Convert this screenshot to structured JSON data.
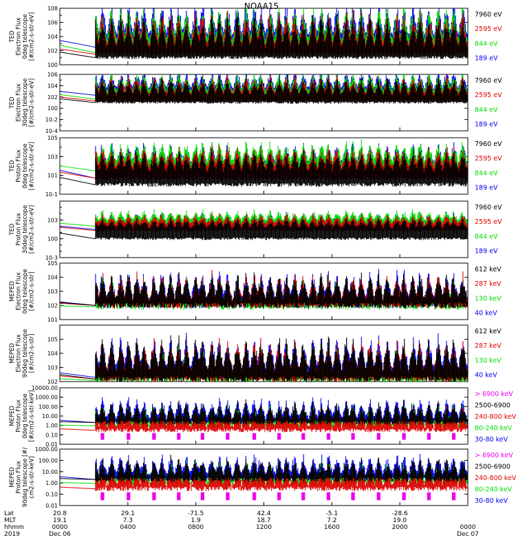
{
  "title": "NOAA15",
  "colors": {
    "black": "#000000",
    "red": "#dd0000",
    "green": "#00dd00",
    "blue": "#0000ee",
    "magenta": "#ee00ee"
  },
  "chart_data": {
    "type": "line",
    "title": "NOAA15",
    "panels": [
      {
        "ylabel": [
          "TED",
          "Electron Flux",
          "0deg telescope",
          "[#/cm2-s-str-eV]"
        ],
        "yscale": "log",
        "yticks": [
          "10^0",
          "10^2",
          "10^4",
          "10^6",
          "10^8"
        ],
        "ylim": [
          1,
          100000000
        ],
        "legend": [
          {
            "label": "7960 eV",
            "color": "black"
          },
          {
            "label": "2595 eV",
            "color": "red"
          },
          {
            "label": "844 eV",
            "color": "green"
          },
          {
            "label": "189 eV",
            "color": "blue"
          }
        ],
        "bands": {
          "black": [
            10,
            300
          ],
          "red": [
            30,
            800
          ],
          "green": [
            50,
            5000
          ],
          "blue": [
            300,
            20000
          ]
        },
        "peak_decades": 4.5
      },
      {
        "ylabel": [
          "TED",
          "Electron Flux",
          "30deg telescope",
          "[#/cm2-s-str-eV]"
        ],
        "yscale": "log",
        "yticks": [
          "10^-4",
          "10^-2",
          "10^0",
          "10^2",
          "10^4",
          "10^6"
        ],
        "ylim": [
          0.0001,
          1000000
        ],
        "legend": [
          {
            "label": "7960 eV",
            "color": "black"
          },
          {
            "label": "2595 eV",
            "color": "red"
          },
          {
            "label": "844 eV",
            "color": "green"
          },
          {
            "label": "189 eV",
            "color": "blue"
          }
        ],
        "bands": {
          "black": [
            10,
            200
          ],
          "red": [
            20,
            400
          ],
          "green": [
            40,
            1500
          ],
          "blue": [
            200,
            4000
          ]
        },
        "peak_decades": 3.0
      },
      {
        "ylabel": [
          "TED",
          "Proton Flux",
          "0deg telescope",
          "[#/cm2-s-str-eV]"
        ],
        "yscale": "log",
        "yticks": [
          "10^-1",
          "10^1",
          "10^3",
          "10^5"
        ],
        "ylim": [
          0.1,
          100000
        ],
        "legend": [
          {
            "label": "7960 eV",
            "color": "black"
          },
          {
            "label": "2595 eV",
            "color": "red"
          },
          {
            "label": "844 eV",
            "color": "green"
          },
          {
            "label": "189 eV",
            "color": "blue"
          }
        ],
        "bands": {
          "black": [
            1,
            30
          ],
          "red": [
            5,
            80
          ],
          "green": [
            30,
            300
          ],
          "blue": [
            5,
            200
          ]
        },
        "peak_decades": 2.0
      },
      {
        "ylabel": [
          "TED",
          "Proton Flux",
          "30deg telescope",
          "[#/cm2-s-str-eV]"
        ],
        "yscale": "log",
        "yticks": [
          "10^-3",
          "10^0",
          "10^3"
        ],
        "ylim": [
          0.001,
          1000000
        ],
        "legend": [
          {
            "label": "7960 eV",
            "color": "black"
          },
          {
            "label": "2595 eV",
            "color": "red"
          },
          {
            "label": "844 eV",
            "color": "green"
          },
          {
            "label": "189 eV",
            "color": "blue"
          }
        ],
        "bands": {
          "black": [
            1,
            50
          ],
          "red": [
            20,
            200
          ],
          "green": [
            100,
            800
          ],
          "blue": [
            30,
            300
          ]
        },
        "peak_decades": 1.5
      },
      {
        "ylabel": [
          "MEPED",
          "Electron Flux",
          "0deg telescope",
          "[#/cm2-s-str]"
        ],
        "yscale": "log",
        "yticks": [
          "10^1",
          "10^2",
          "10^3",
          "10^4",
          "10^5"
        ],
        "ylim": [
          10,
          100000
        ],
        "legend": [
          {
            "label": "612 keV",
            "color": "black"
          },
          {
            "label": "287 keV",
            "color": "red"
          },
          {
            "label": "130 keV",
            "color": "green"
          },
          {
            "label": "40 keV",
            "color": "blue"
          }
        ],
        "bands": {
          "black": [
            100,
            250
          ],
          "red": [
            100,
            200
          ],
          "green": [
            80,
            110
          ],
          "blue": [
            100,
            300
          ]
        },
        "peak_decades": 1.8
      },
      {
        "ylabel": [
          "MEPED",
          "Electron Flux",
          "90deg telescope",
          "[#/cm2-s-str]"
        ],
        "yscale": "log",
        "yticks": [
          "10^2",
          "10^3",
          "10^4",
          "10^5"
        ],
        "ylim": [
          100,
          1000000
        ],
        "legend": [
          {
            "label": "612 keV",
            "color": "black"
          },
          {
            "label": "287 keV",
            "color": "red"
          },
          {
            "label": "130 keV",
            "color": "green"
          },
          {
            "label": "40 keV",
            "color": "blue"
          }
        ],
        "bands": {
          "black": [
            150,
            600
          ],
          "red": [
            150,
            400
          ],
          "green": [
            120,
            200
          ],
          "blue": [
            200,
            800
          ]
        },
        "peak_decades": 2.2
      },
      {
        "ylabel": [
          "MEPED",
          "Proton Flux",
          "0deg telescope",
          "[#/cm2-s-str-keV]"
        ],
        "yscale": "log",
        "yticks": [
          "0.01",
          "0.10",
          "1.00",
          "10.00",
          "100.00",
          "1000.00",
          "10000.00"
        ],
        "ylim": [
          0.01,
          10000
        ],
        "legend": [
          {
            "label": "> 6900 keV",
            "color": "magenta"
          },
          {
            "label": "2500-6900",
            "color": "black"
          },
          {
            "label": "240-800 keV",
            "color": "red"
          },
          {
            "label": "80-240 keV",
            "color": "green"
          },
          {
            "label": "30-80 keV",
            "color": "blue"
          }
        ],
        "bands": {
          "black": [
            2,
            3
          ],
          "red": [
            0.3,
            0.6
          ],
          "green": [
            0.9,
            1.3
          ],
          "blue": [
            2,
            6
          ]
        },
        "peak_decades": 2.0
      },
      {
        "ylabel": [
          "MEPED",
          "Proton Flux",
          "90deg telescope [#/",
          "cm2-s-str-keV]"
        ],
        "yscale": "log",
        "yticks": [
          "0.01",
          "0.10",
          "1.00",
          "10.00",
          "100.00",
          "1000.00"
        ],
        "ylim": [
          0.01,
          1000
        ],
        "legend": [
          {
            "label": "> 6900 keV",
            "color": "magenta"
          },
          {
            "label": "2500-6900",
            "color": "black"
          },
          {
            "label": "240-800 keV",
            "color": "red"
          },
          {
            "label": "80-240 keV",
            "color": "green"
          },
          {
            "label": "30-80 keV",
            "color": "blue"
          }
        ],
        "bands": {
          "black": [
            2,
            3
          ],
          "red": [
            0.3,
            0.6
          ],
          "green": [
            0.9,
            1.3
          ],
          "blue": [
            2,
            6
          ]
        },
        "peak_decades": 1.6
      }
    ],
    "x_axis": {
      "row_labels": [
        "Lat",
        "MLT",
        "hhmm",
        "2019"
      ],
      "ticks": [
        {
          "frac": 0.0,
          "lat": "20.8",
          "mlt": "19.1",
          "hhmm": "0000",
          "date": "Dec 06"
        },
        {
          "frac": 0.1667,
          "lat": "29.1",
          "mlt": "7.3",
          "hhmm": "0400",
          "date": ""
        },
        {
          "frac": 0.3333,
          "lat": "-71.5",
          "mlt": "1.9",
          "hhmm": "0800",
          "date": ""
        },
        {
          "frac": 0.5,
          "lat": "42.4",
          "mlt": "18.7",
          "hhmm": "1200",
          "date": ""
        },
        {
          "frac": 0.6667,
          "lat": "-5.1",
          "mlt": "7.2",
          "hhmm": "1600",
          "date": ""
        },
        {
          "frac": 0.8333,
          "lat": "-28.6",
          "mlt": "19.0",
          "hhmm": "2000",
          "date": ""
        },
        {
          "frac": 1.0,
          "lat": "",
          "mlt": "",
          "hhmm": "0000",
          "date": "Dec 07"
        }
      ]
    },
    "data_gap_end_hour": 2.1
  }
}
